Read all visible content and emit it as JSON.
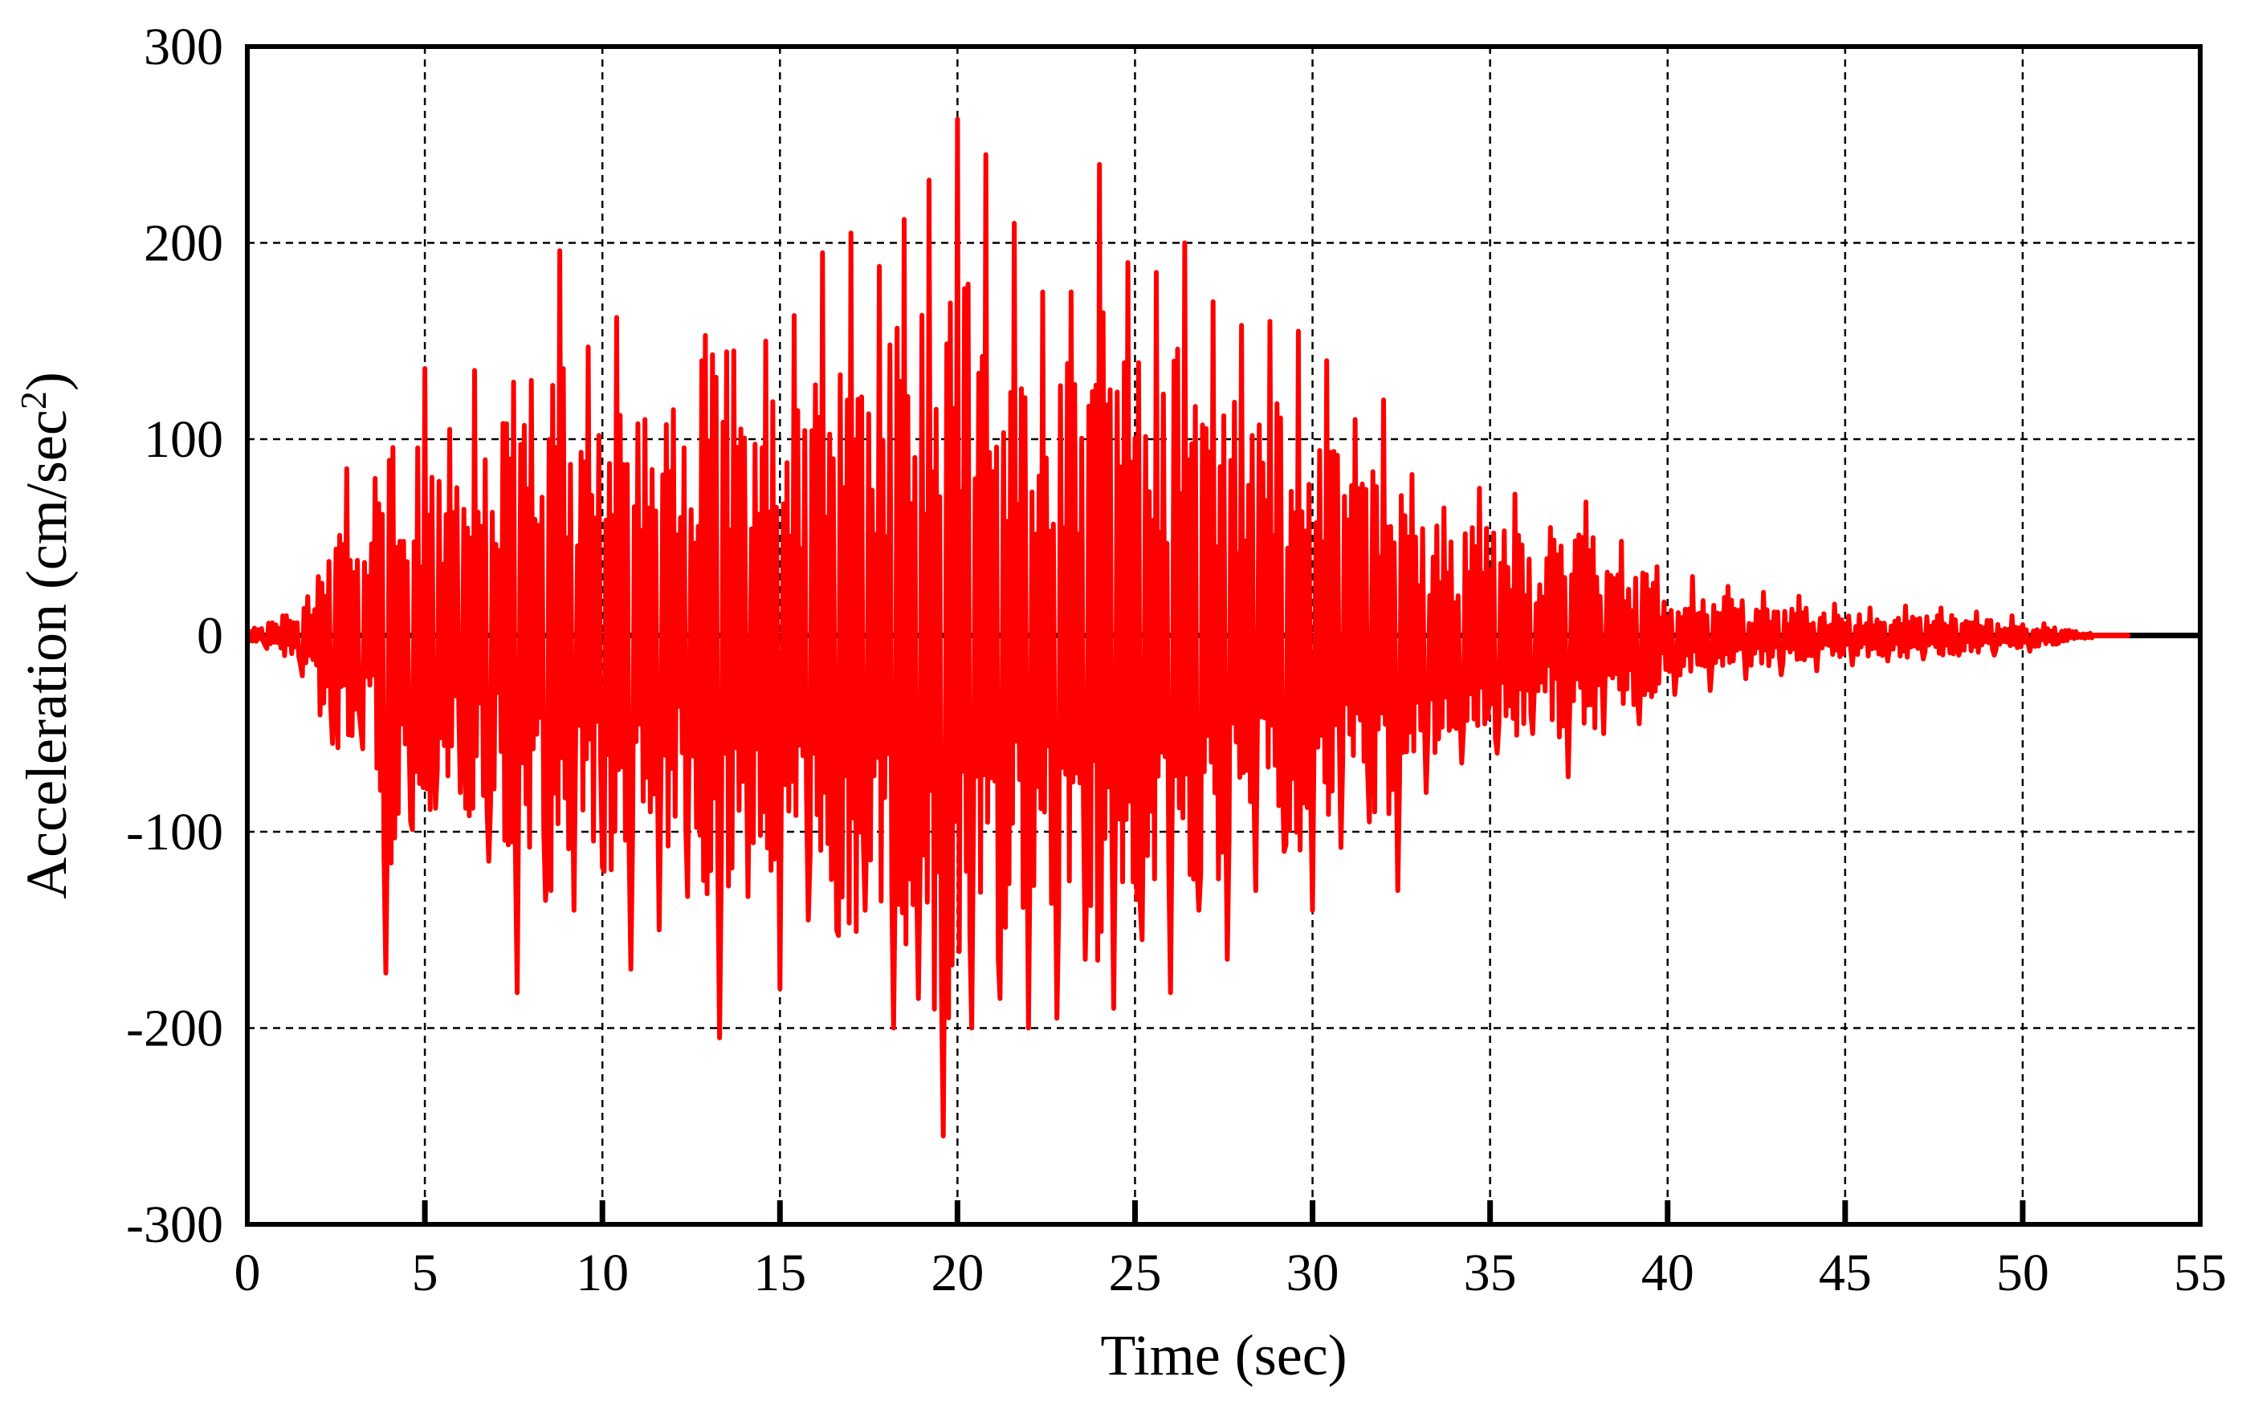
{
  "chart_data": {
    "type": "line",
    "title": "",
    "xlabel": "Time (sec)",
    "ylabel_main": "Acceleration (cm/sec",
    "ylabel_sup": "2",
    "ylabel_close": ")",
    "xlim": [
      0,
      55
    ],
    "ylim": [
      -300,
      300
    ],
    "x_ticks": [
      0,
      5,
      10,
      15,
      20,
      25,
      30,
      35,
      40,
      45,
      50,
      55
    ],
    "x_tick_labels": [
      "0",
      "5",
      "10",
      "15",
      "20",
      "25",
      "30",
      "35",
      "40",
      "45",
      "50",
      "55"
    ],
    "y_ticks": [
      300,
      200,
      100,
      0,
      -100,
      -200,
      -300
    ],
    "y_tick_labels": [
      "300",
      "200",
      "100",
      "0",
      "-100",
      "-200",
      "-300"
    ],
    "grid": true,
    "legend": "none",
    "series": [
      {
        "color": "#ff0000",
        "record_end": 53,
        "x": [
          0,
          0.5,
          1.0,
          1.5,
          2.0,
          2.4,
          2.8,
          3.2,
          3.6,
          3.9,
          4.3,
          4.6,
          5.0,
          5.3,
          5.7,
          6.0,
          6.4,
          6.8,
          7.2,
          7.6,
          8.0,
          8.4,
          8.8,
          9.2,
          9.6,
          10.0,
          10.4,
          10.8,
          11.2,
          11.6,
          12.0,
          12.4,
          12.8,
          13.3,
          13.7,
          14.1,
          14.6,
          15.0,
          15.4,
          15.8,
          16.2,
          16.6,
          17.0,
          17.4,
          17.8,
          18.2,
          18.5,
          18.9,
          19.2,
          19.6,
          20.0,
          20.4,
          20.8,
          21.2,
          21.6,
          22.0,
          22.4,
          22.8,
          23.2,
          23.6,
          24.0,
          24.4,
          24.8,
          25.2,
          25.6,
          26.0,
          26.4,
          26.8,
          27.2,
          27.6,
          28.0,
          28.4,
          28.8,
          29.2,
          29.6,
          30.0,
          30.4,
          30.8,
          31.2,
          31.6,
          32.0,
          32.4,
          32.8,
          33.2,
          33.7,
          34.2,
          34.7,
          35.2,
          35.7,
          36.2,
          36.7,
          37.2,
          37.7,
          38.2,
          38.7,
          39.2,
          39.7,
          40.2,
          40.7,
          41.2,
          41.7,
          42.2,
          42.7,
          43.2,
          43.7,
          44.2,
          44.7,
          45.2,
          45.7,
          46.2,
          46.7,
          47.2,
          47.7,
          48.2,
          48.7,
          49.2,
          49.7,
          50.2,
          50.6,
          51.0,
          51.5,
          52.0,
          53.0
        ],
        "y": [
          0,
          -5,
          10,
          -15,
          30,
          -55,
          85,
          -48,
          80,
          -172,
          48,
          -95,
          136,
          -88,
          105,
          -80,
          135,
          -115,
          108,
          -182,
          130,
          -135,
          196,
          -140,
          147,
          -118,
          162,
          -170,
          110,
          -150,
          115,
          -133,
          140,
          -205,
          145,
          -133,
          150,
          -180,
          163,
          -145,
          195,
          -150,
          205,
          -140,
          188,
          -200,
          212,
          -185,
          232,
          -255,
          263,
          -200,
          245,
          -185,
          210,
          -200,
          175,
          -195,
          175,
          -165,
          240,
          -190,
          190,
          -155,
          185,
          -182,
          200,
          -140,
          170,
          -165,
          158,
          -130,
          160,
          -110,
          155,
          -140,
          140,
          -108,
          110,
          -95,
          120,
          -130,
          82,
          -80,
          65,
          -65,
          75,
          -60,
          72,
          -50,
          55,
          -72,
          68,
          -50,
          48,
          -45,
          35,
          -30,
          30,
          -28,
          25,
          -22,
          22,
          -20,
          20,
          -18,
          16,
          -15,
          14,
          -13,
          15,
          -12,
          14,
          -10,
          12,
          -10,
          10,
          -8,
          6,
          -4,
          2,
          0,
          0
        ]
      }
    ]
  }
}
